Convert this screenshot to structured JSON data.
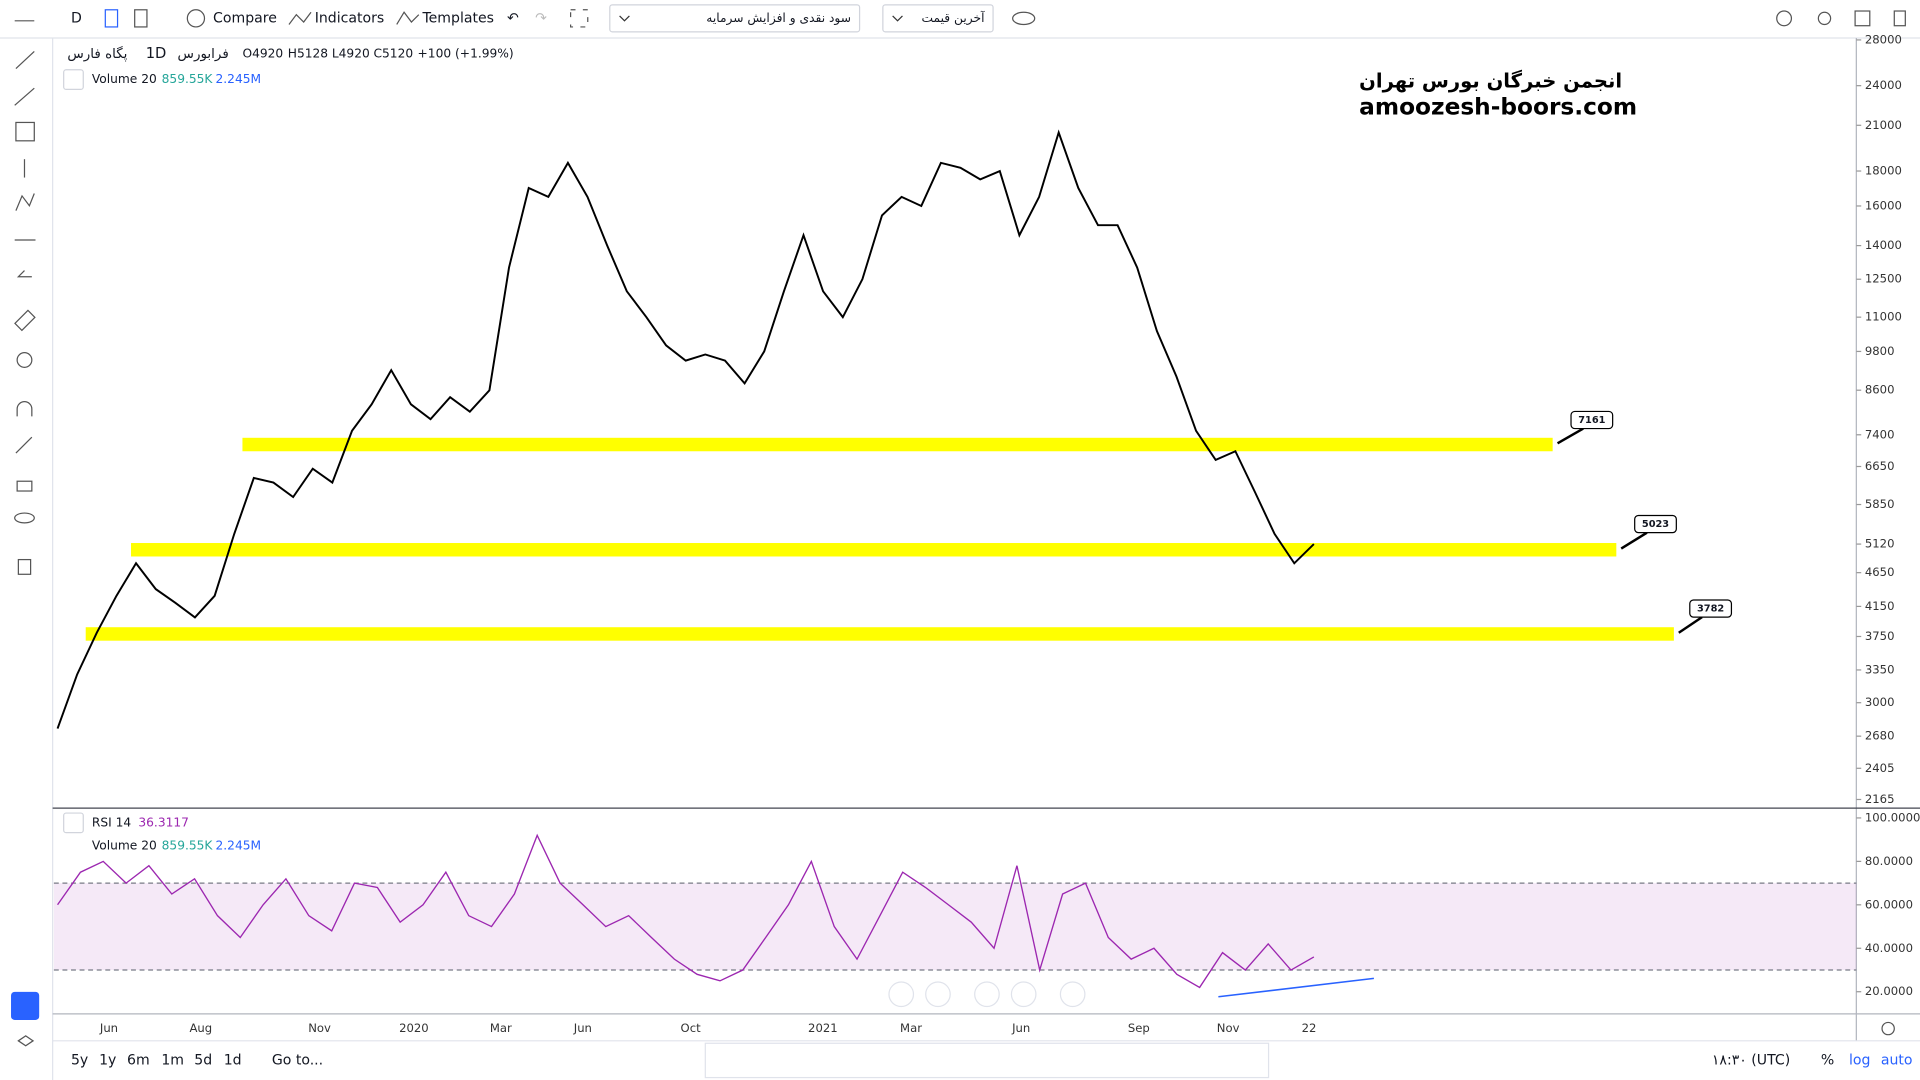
{
  "toolbar": {
    "interval": "D",
    "compare": "Compare",
    "indicators": "Indicators",
    "templates": "Templates",
    "symbol_search": "سود نقدی و افزایش سرمایه",
    "price_type": "آخرین قیمت"
  },
  "legend": {
    "symbol": "پگاه فارس",
    "interval": "1D",
    "exchange": "فرابورس",
    "open": "O4920",
    "high": "H5128",
    "low": "L4920",
    "close": "C5120",
    "change": "+100 (+1.99%)"
  },
  "volume_legend": {
    "name": "Volume 20",
    "value": "859.55K",
    "ma": "2.245M"
  },
  "watermark": {
    "line1": "انجمن خبرگان بورس تهران",
    "line2": "amoozesh-boors.com"
  },
  "price_chart": {
    "type": "line",
    "log_scale": true,
    "color": "#000000",
    "ylim": [
      2120,
      28070
    ],
    "yticks": [
      28000,
      24000,
      21000,
      18000,
      16000,
      14000,
      12500,
      11000,
      9800,
      8600,
      7400,
      6650,
      5850,
      5120,
      4650,
      4150,
      3750,
      3350,
      3000,
      2680,
      2405,
      2165
    ],
    "values": [
      2750,
      3300,
      3800,
      4300,
      4800,
      4400,
      4200,
      4000,
      4300,
      5300,
      6400,
      6300,
      6000,
      6600,
      6300,
      7500,
      8200,
      9200,
      8200,
      7800,
      8400,
      8000,
      8600,
      13000,
      17000,
      16500,
      18500,
      16500,
      14000,
      12000,
      11000,
      10000,
      9500,
      9700,
      9500,
      8800,
      9800,
      12000,
      14500,
      12000,
      11000,
      12500,
      15500,
      16500,
      16000,
      18500,
      18200,
      17500,
      18000,
      14500,
      16500,
      20500,
      17000,
      15000,
      15000,
      13000,
      10500,
      9000,
      7500,
      6800,
      7000,
      6100,
      5300,
      4800,
      5120
    ],
    "levels": [
      {
        "value": 7161,
        "label": "7161"
      },
      {
        "value": 5023,
        "label": "5023"
      },
      {
        "value": 3782,
        "label": "3782"
      }
    ],
    "level_color": "#ffff00"
  },
  "rsi": {
    "type": "line",
    "name": "RSI 14",
    "last": "36.3117",
    "color": "#9c27b0",
    "ylim": [
      9.8,
      104.5
    ],
    "yticks": [
      {
        "value": 100,
        "label": "100.0000"
      },
      {
        "value": 80,
        "label": "80.0000"
      },
      {
        "value": 60,
        "label": "60.0000"
      },
      {
        "value": 40,
        "label": "40.0000"
      },
      {
        "value": 20,
        "label": "20.0000"
      }
    ],
    "bands": [
      70,
      30
    ],
    "values": [
      60,
      75,
      80,
      70,
      78,
      65,
      72,
      55,
      45,
      60,
      72,
      55,
      48,
      70,
      68,
      52,
      60,
      75,
      55,
      50,
      65,
      92,
      70,
      60,
      50,
      55,
      45,
      35,
      28,
      25,
      30,
      45,
      60,
      80,
      50,
      35,
      55,
      75,
      68,
      60,
      52,
      40,
      78,
      30,
      65,
      70,
      45,
      35,
      40,
      28,
      22,
      38,
      30,
      42,
      30,
      36
    ]
  },
  "time_axis": [
    "Jun",
    "Aug",
    "Nov",
    "2020",
    "Mar",
    "Jun",
    "Oct",
    "2021",
    "Mar",
    "Jun",
    "Sep",
    "Nov",
    "22"
  ],
  "bottom_bar": {
    "ranges": [
      "5y",
      "1y",
      "6m",
      "1m",
      "5d",
      "1d"
    ],
    "goto": "Go to...",
    "clock": "۱۸:۳۰ (UTC)",
    "percent": "%",
    "log": "log",
    "auto": "auto"
  }
}
